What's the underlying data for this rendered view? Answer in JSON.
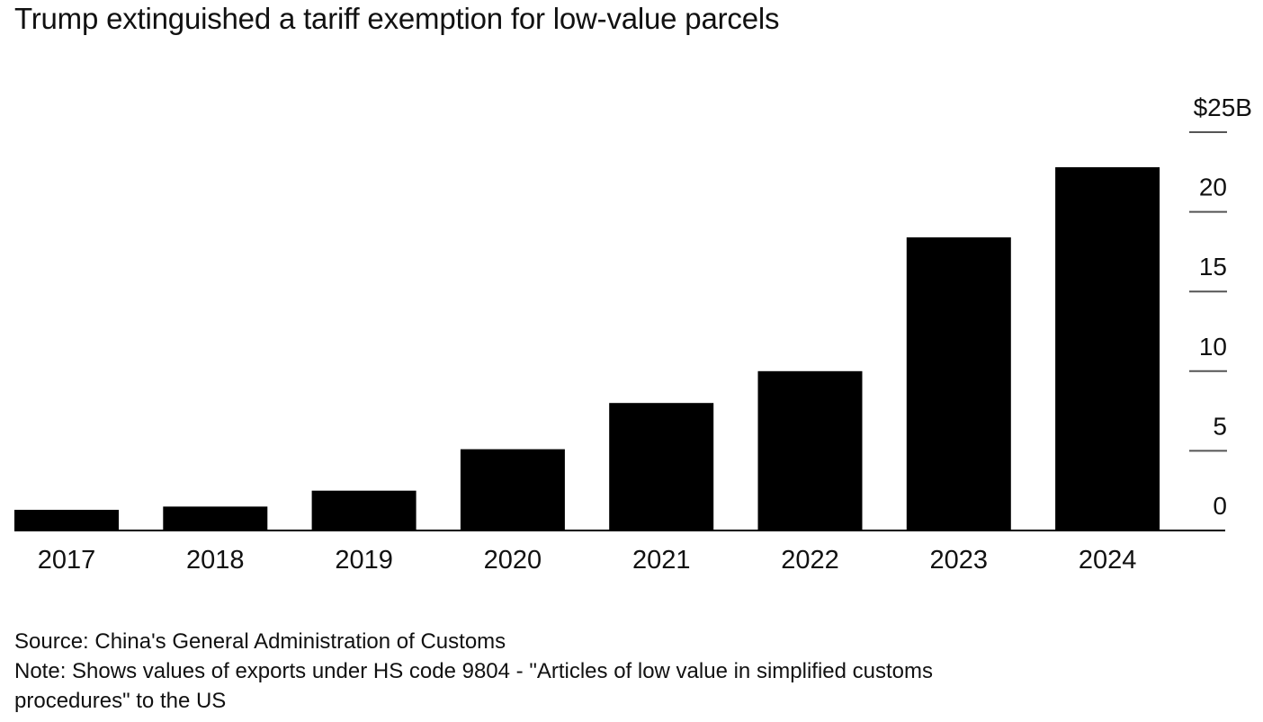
{
  "chart_data": {
    "type": "bar",
    "title": "Trump extinguished a tariff exemption for low-value parcels",
    "xlabel": "",
    "ylabel": "",
    "categories": [
      "2017",
      "2018",
      "2019",
      "2020",
      "2021",
      "2022",
      "2023",
      "2024"
    ],
    "values": [
      1.3,
      1.5,
      2.5,
      5.1,
      8.0,
      10.0,
      18.4,
      22.8
    ],
    "units": "USD billions",
    "ylim": [
      0,
      25
    ],
    "y_ticks": [
      0,
      5,
      10,
      15,
      20,
      25
    ],
    "y_tick_labels": [
      "0",
      "5",
      "10",
      "15",
      "20",
      "$25B"
    ],
    "y_axis_side": "right",
    "grid": false,
    "bar_color": "#000000"
  },
  "footer": {
    "source": "Source: China's General Administration of Customs",
    "note_line1": "Note: Shows values of exports under HS code 9804 - \"Articles of low value in simplified customs",
    "note_line2": "procedures\" to the US"
  }
}
